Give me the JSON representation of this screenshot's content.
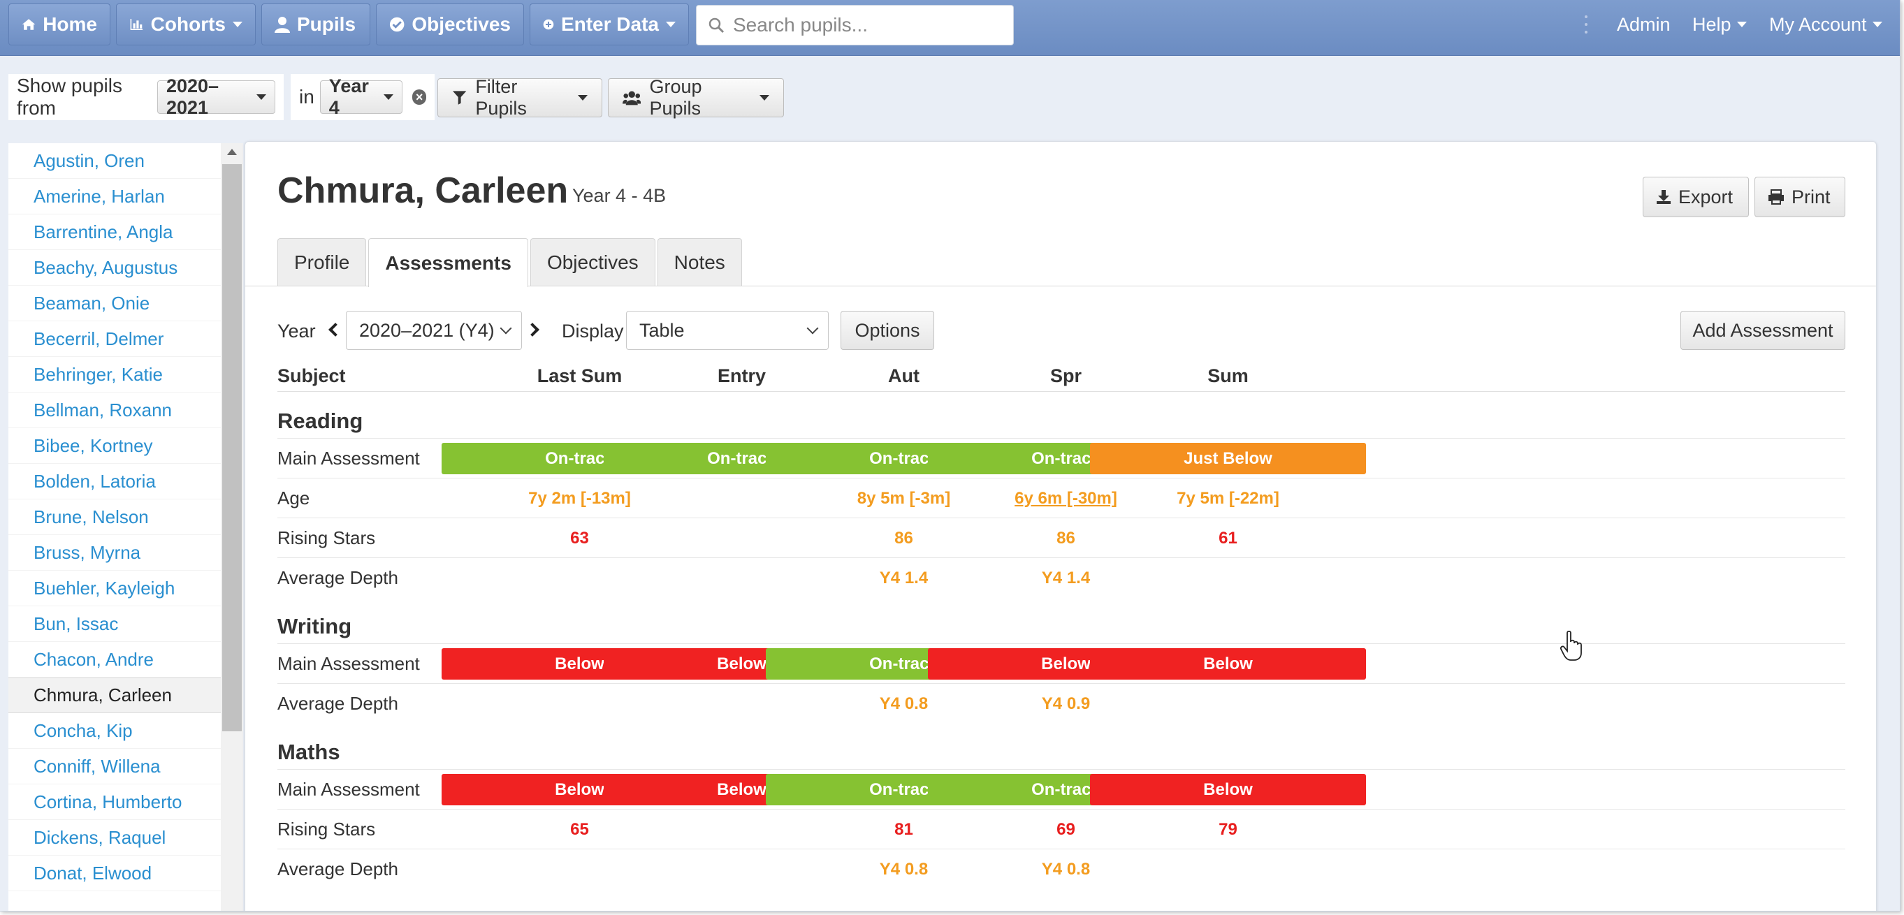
{
  "nav": {
    "home": "Home",
    "cohorts": "Cohorts",
    "pupils": "Pupils",
    "objectives": "Objectives",
    "enter_data": "Enter Data",
    "search_placeholder": "Search pupils...",
    "admin": "Admin",
    "help": "Help",
    "my_account": "My Account"
  },
  "filter": {
    "show_label": "Show pupils from",
    "year_value": "2020–2021",
    "in_label": "in",
    "group_value": "Year 4",
    "filter_pupils": "Filter Pupils",
    "group_pupils": "Group Pupils"
  },
  "pupils": [
    {
      "name": "Agustin, Oren",
      "active": false
    },
    {
      "name": "Amerine, Harlan",
      "active": false
    },
    {
      "name": "Barrentine, Angla",
      "active": false
    },
    {
      "name": "Beachy, Augustus",
      "active": false
    },
    {
      "name": "Beaman, Onie",
      "active": false
    },
    {
      "name": "Becerril, Delmer",
      "active": false
    },
    {
      "name": "Behringer, Katie",
      "active": false
    },
    {
      "name": "Bellman, Roxann",
      "active": false
    },
    {
      "name": "Bibee, Kortney",
      "active": false
    },
    {
      "name": "Bolden, Latoria",
      "active": false
    },
    {
      "name": "Brune, Nelson",
      "active": false
    },
    {
      "name": "Bruss, Myrna",
      "active": false
    },
    {
      "name": "Buehler, Kayleigh",
      "active": false
    },
    {
      "name": "Bun, Issac",
      "active": false
    },
    {
      "name": "Chacon, Andre",
      "active": false
    },
    {
      "name": "Chmura, Carleen",
      "active": true
    },
    {
      "name": "Concha, Kip",
      "active": false
    },
    {
      "name": "Conniff, Willena",
      "active": false
    },
    {
      "name": "Cortina, Humberto",
      "active": false
    },
    {
      "name": "Dickens, Raquel",
      "active": false
    },
    {
      "name": "Donat, Elwood",
      "active": false
    }
  ],
  "pupil": {
    "name": "Chmura, Carleen",
    "class": "Year 4 - 4B",
    "export": "Export",
    "print": "Print"
  },
  "tabs": [
    "Profile",
    "Assessments",
    "Objectives",
    "Notes"
  ],
  "controls": {
    "year_label": "Year",
    "year_value": "2020–2021 (Y4)",
    "display_label": "Display",
    "display_value": "Table",
    "options": "Options",
    "add_assessment": "Add Assessment"
  },
  "colors": {
    "green": "#86c232",
    "orange": "#f5901f",
    "red": "#f02222",
    "val_orange": "#f39c1f",
    "val_red": "#e81f1f"
  },
  "table": {
    "columns": [
      "Subject",
      "Last Sum",
      "Entry",
      "Aut",
      "Spr",
      "Sum"
    ],
    "sections": [
      {
        "title": "Reading",
        "rows": [
          {
            "label": "Main Assessment",
            "type": "status",
            "cells": [
              {
                "text": "On-track",
                "color": "green"
              },
              {
                "text": "On-track",
                "color": "green"
              },
              {
                "text": "On-track",
                "color": "green"
              },
              {
                "text": "On-track",
                "color": "green"
              },
              {
                "text": "Just Below",
                "color": "orange"
              }
            ]
          },
          {
            "label": "Age",
            "type": "value",
            "cells": [
              {
                "text": "7y 2m [-13m]",
                "color": "orange"
              },
              {
                "text": "",
                "color": ""
              },
              {
                "text": "8y 5m [-3m]",
                "color": "orange"
              },
              {
                "text": "6y 6m [-30m]",
                "color": "orange",
                "underline": true
              },
              {
                "text": "7y 5m [-22m]",
                "color": "orange"
              }
            ]
          },
          {
            "label": "Rising Stars",
            "type": "value",
            "cells": [
              {
                "text": "63",
                "color": "red"
              },
              {
                "text": "",
                "color": ""
              },
              {
                "text": "86",
                "color": "orange"
              },
              {
                "text": "86",
                "color": "orange"
              },
              {
                "text": "61",
                "color": "red"
              }
            ]
          },
          {
            "label": "Average Depth",
            "type": "value",
            "cells": [
              {
                "text": "",
                "color": ""
              },
              {
                "text": "",
                "color": ""
              },
              {
                "text": "Y4 1.4",
                "color": "orange"
              },
              {
                "text": "Y4 1.4",
                "color": "orange"
              },
              {
                "text": "",
                "color": ""
              }
            ]
          }
        ]
      },
      {
        "title": "Writing",
        "rows": [
          {
            "label": "Main Assessment",
            "type": "status",
            "cells": [
              {
                "text": "Below",
                "color": "red"
              },
              {
                "text": "Below",
                "color": "red"
              },
              {
                "text": "On-track",
                "color": "green"
              },
              {
                "text": "Below",
                "color": "red"
              },
              {
                "text": "Below",
                "color": "red"
              }
            ]
          },
          {
            "label": "Average Depth",
            "type": "value",
            "cells": [
              {
                "text": "",
                "color": ""
              },
              {
                "text": "",
                "color": ""
              },
              {
                "text": "Y4 0.8",
                "color": "orange"
              },
              {
                "text": "Y4 0.9",
                "color": "orange"
              },
              {
                "text": "",
                "color": ""
              }
            ]
          }
        ]
      },
      {
        "title": "Maths",
        "rows": [
          {
            "label": "Main Assessment",
            "type": "status",
            "cells": [
              {
                "text": "Below",
                "color": "red"
              },
              {
                "text": "Below",
                "color": "red"
              },
              {
                "text": "On-track",
                "color": "green"
              },
              {
                "text": "On-track",
                "color": "green"
              },
              {
                "text": "Below",
                "color": "red"
              }
            ]
          },
          {
            "label": "Rising Stars",
            "type": "value",
            "cells": [
              {
                "text": "65",
                "color": "red"
              },
              {
                "text": "",
                "color": ""
              },
              {
                "text": "81",
                "color": "red"
              },
              {
                "text": "69",
                "color": "red"
              },
              {
                "text": "79",
                "color": "red"
              }
            ]
          },
          {
            "label": "Average Depth",
            "type": "value",
            "cells": [
              {
                "text": "",
                "color": ""
              },
              {
                "text": "",
                "color": ""
              },
              {
                "text": "Y4 0.8",
                "color": "orange"
              },
              {
                "text": "Y4 0.8",
                "color": "orange"
              },
              {
                "text": "",
                "color": ""
              }
            ]
          }
        ]
      }
    ]
  }
}
